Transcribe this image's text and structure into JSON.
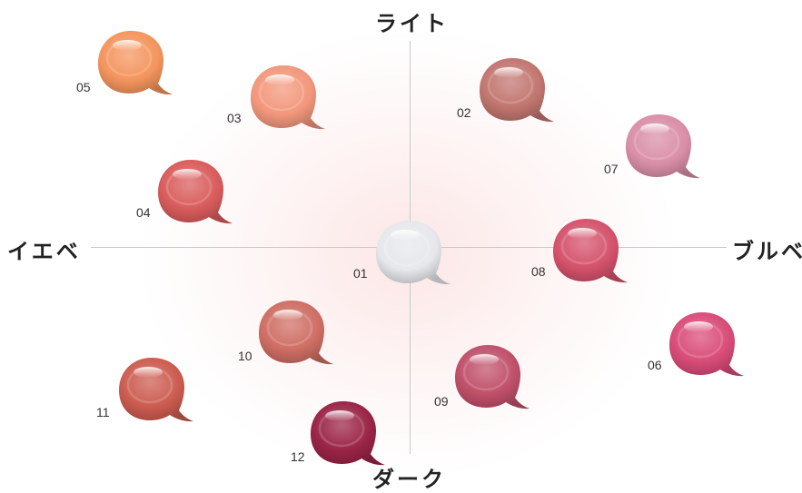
{
  "axes": {
    "top": "ライト",
    "bottom": "ダーク",
    "left": "イエベ",
    "right": "ブルベ"
  },
  "swatches": [
    {
      "id": "01",
      "color": "#e6e8ec"
    },
    {
      "id": "02",
      "color": "#c27670"
    },
    {
      "id": "03",
      "color": "#f2977c"
    },
    {
      "id": "04",
      "color": "#d95c5c"
    },
    {
      "id": "05",
      "color": "#f4955e"
    },
    {
      "id": "06",
      "color": "#d94c78"
    },
    {
      "id": "07",
      "color": "#d98fa8"
    },
    {
      "id": "08",
      "color": "#d4526c"
    },
    {
      "id": "09",
      "color": "#c0506a"
    },
    {
      "id": "10",
      "color": "#cf6e64"
    },
    {
      "id": "11",
      "color": "#cc5c50"
    },
    {
      "id": "12",
      "color": "#9a2446"
    }
  ]
}
